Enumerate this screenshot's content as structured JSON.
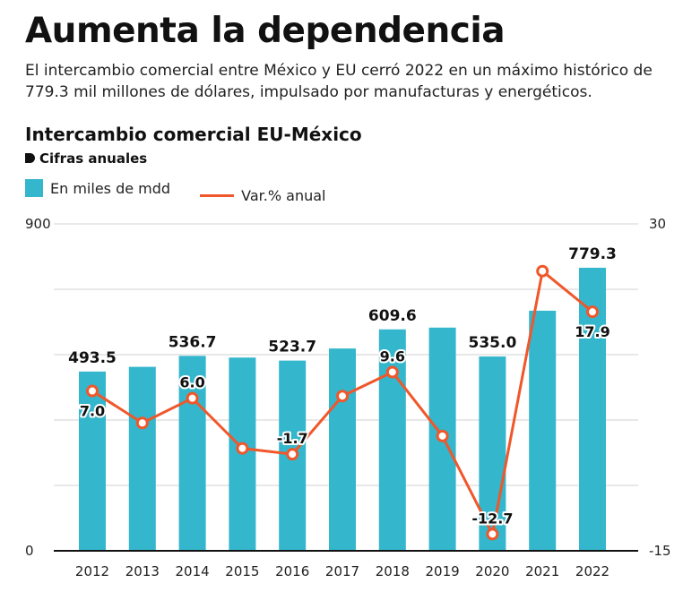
{
  "headline": "Aumenta la dependencia",
  "subtitle": "El intercambio comercial entre México y EU cerró 2022 en un máximo histórico de 779.3 mil millones de dólares, impulsado por manufacturas y energéticos.",
  "chart_title": "Intercambio comercial EU-México",
  "chart_subtitle": "Cifras anuales",
  "legend": {
    "bars": "En miles de mdd",
    "line": "Var.% anual"
  },
  "colors": {
    "bar": "#34b6cc",
    "line": "#f0572a",
    "text": "#111111",
    "grid": "#d0d0d0"
  },
  "chart_data": {
    "type": "bar+line",
    "categories": [
      "2012",
      "2013",
      "2014",
      "2015",
      "2016",
      "2017",
      "2018",
      "2019",
      "2020",
      "2021",
      "2022"
    ],
    "series": [
      {
        "name": "En miles de mdd",
        "axis": "left",
        "values": [
          493.5,
          506.5,
          536.7,
          532.0,
          523.7,
          557.0,
          609.6,
          614.5,
          535.0,
          661.0,
          779.3
        ],
        "labels": [
          "493.5",
          "",
          "536.7",
          "",
          "523.7",
          "",
          "609.6",
          "",
          "535.0",
          "",
          "779.3"
        ]
      },
      {
        "name": "Var.% anual",
        "axis": "right",
        "values": [
          7.0,
          2.6,
          6.0,
          -0.9,
          -1.7,
          6.3,
          9.6,
          0.8,
          -12.7,
          23.5,
          17.9
        ],
        "labels": [
          "7.0",
          "",
          "6.0",
          "",
          "-1.7",
          "",
          "9.6",
          "",
          "-12.7",
          "",
          "17.9"
        ]
      }
    ],
    "y_left": {
      "range": [
        0,
        900
      ],
      "ticks": [
        "0",
        "900"
      ]
    },
    "y_right": {
      "range": [
        -15,
        30
      ],
      "ticks": [
        "-15",
        "30"
      ]
    },
    "grid": true
  }
}
